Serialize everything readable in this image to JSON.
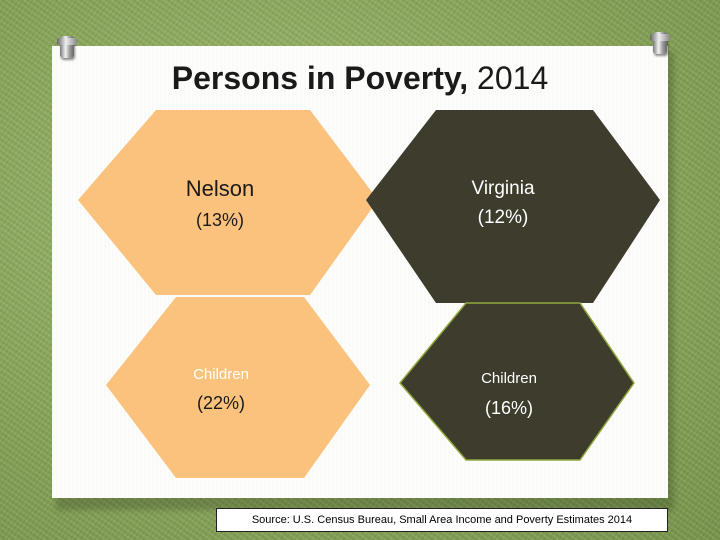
{
  "slide": {
    "title_bold": "Persons in Poverty,",
    "title_year": "2014"
  },
  "colors": {
    "background_green": "#8fae5f",
    "card": "#fdfdfb",
    "nelson_fill": "#fbc27d",
    "virginia_fill": "#3e3c2d",
    "virginia_border": "#8fa83c",
    "dark_text": "#1a1a1a",
    "light_text": "#ffffff"
  },
  "hexagons": {
    "nelson_persons": {
      "name": "Nelson",
      "value": "(13%)"
    },
    "virginia_persons": {
      "name": "Virginia",
      "value": "(12%)"
    },
    "nelson_children": {
      "name": "Children",
      "value": "(22%)"
    },
    "virginia_children": {
      "name": "Children",
      "value": "(16%)"
    }
  },
  "source": "Source: U.S. Census Bureau, Small Area Income and Poverty Estimates 2014"
}
